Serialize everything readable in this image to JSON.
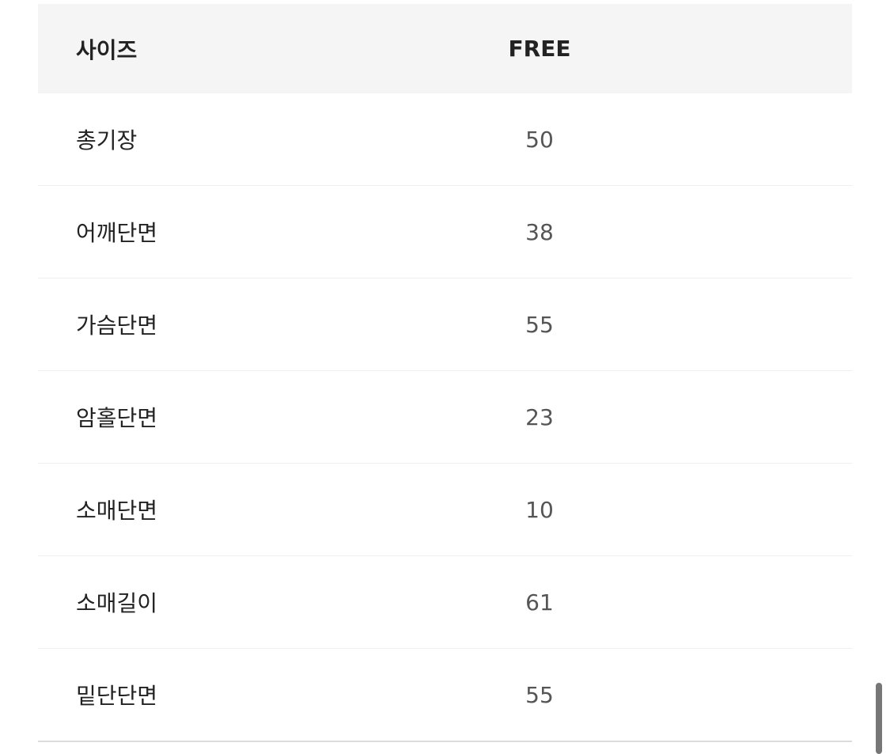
{
  "header": {
    "label": "사이즈",
    "value": "FREE"
  },
  "rows": [
    {
      "label": "총기장",
      "value": "50"
    },
    {
      "label": "어깨단면",
      "value": "38"
    },
    {
      "label": "가슴단면",
      "value": "55"
    },
    {
      "label": "암홀단면",
      "value": "23"
    },
    {
      "label": "소매단면",
      "value": "10"
    },
    {
      "label": "소매길이",
      "value": "61"
    },
    {
      "label": "밑단단면",
      "value": "55"
    }
  ]
}
